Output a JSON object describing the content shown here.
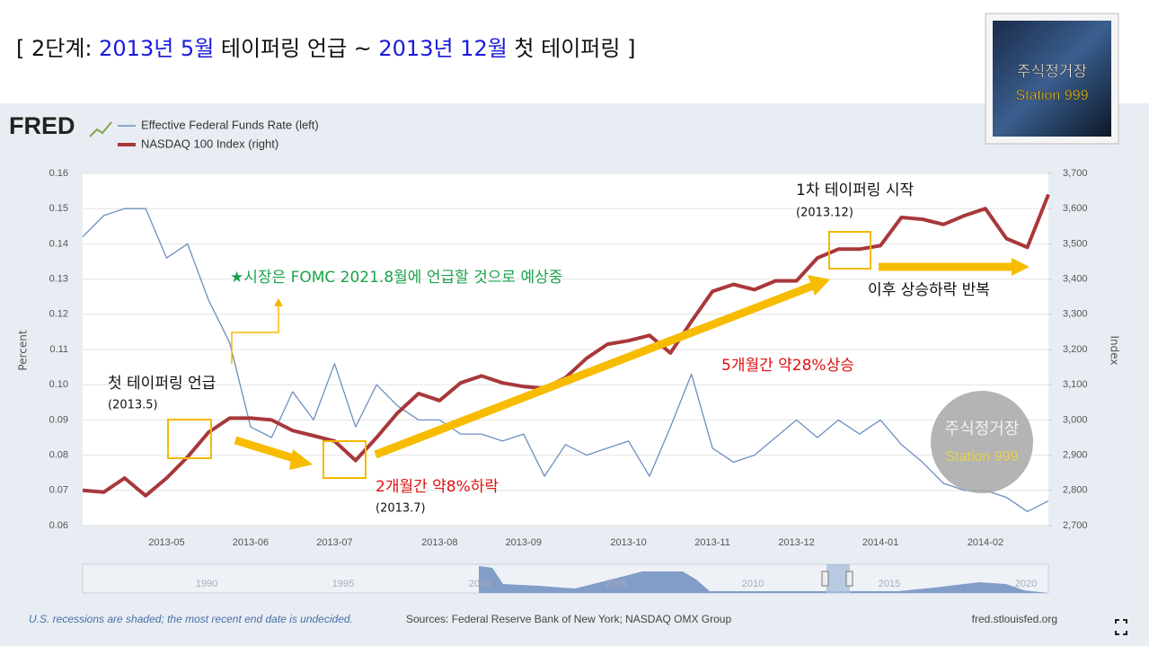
{
  "title_parts": [
    {
      "text": "[ 2단계: ",
      "color": "#111111"
    },
    {
      "text": "2013년 5월",
      "color": "#1a1adc"
    },
    {
      "text": " 테이퍼링 언급 ~ ",
      "color": "#111111"
    },
    {
      "text": "2013년 12월",
      "color": "#1a1adc"
    },
    {
      "text": " 첫 테이퍼링 ]",
      "color": "#111111"
    }
  ],
  "badge": {
    "line1": "주식정거장",
    "line2": "Station 999"
  },
  "watermark": {
    "line1": "주식정거장",
    "line2": "Station 999"
  },
  "logo": "FRED",
  "chart_data": {
    "type": "line",
    "ylabel": "Percent",
    "y2label": "Index",
    "categories": [
      null,
      null,
      null,
      null,
      "2013-05",
      null,
      null,
      null,
      "2013-06",
      null,
      null,
      null,
      "2013-07",
      null,
      null,
      null,
      null,
      "2013-08",
      null,
      null,
      null,
      "2013-09",
      null,
      null,
      null,
      null,
      "2013-10",
      null,
      null,
      null,
      "2013-11",
      null,
      null,
      null,
      "2013-12",
      null,
      null,
      null,
      "2014-01",
      null,
      null,
      null,
      null,
      "2014-02",
      null,
      null,
      null
    ],
    "series": [
      {
        "name": "Effective Federal Funds Rate (left)",
        "color": "#6d8fbf",
        "axis": "y",
        "values": [
          0.142,
          0.148,
          0.15,
          0.15,
          0.136,
          0.14,
          0.124,
          0.112,
          0.088,
          0.085,
          0.098,
          0.09,
          0.106,
          0.088,
          0.1,
          0.094,
          0.09,
          0.09,
          0.086,
          0.086,
          0.084,
          0.086,
          0.074,
          0.083,
          0.08,
          0.082,
          0.084,
          0.074,
          0.088,
          0.103,
          0.082,
          0.078,
          0.08,
          0.085,
          0.09,
          0.085,
          0.09,
          0.086,
          0.09,
          0.083,
          0.078,
          0.072,
          0.07,
          0.07,
          0.068,
          0.064,
          0.067
        ]
      },
      {
        "name": "NASDAQ 100 Index (right)",
        "color": "#a8383a",
        "axis": "y2",
        "values": [
          2800,
          2795,
          2835,
          2785,
          2835,
          2895,
          2965,
          3005,
          3005,
          3000,
          2970,
          2955,
          2940,
          2885,
          2950,
          3020,
          3075,
          3055,
          3105,
          3125,
          3105,
          3095,
          3090,
          3120,
          3175,
          3215,
          3225,
          3240,
          3190,
          3280,
          3365,
          3385,
          3370,
          3395,
          3395,
          3460,
          3485,
          3485,
          3495,
          3575,
          3570,
          3555,
          3580,
          3600,
          3515,
          3490,
          3640
        ]
      }
    ],
    "ylim": [
      0.06,
      0.16
    ],
    "yticks": [
      0.06,
      0.07,
      0.08,
      0.09,
      {
        "value": 0.1,
        "label": "0.10"
      },
      0.11,
      0.12,
      0.13,
      0.14,
      0.15,
      0.16
    ],
    "y2lim": [
      2700,
      3700
    ],
    "y2ticks": [
      {
        "value": 2700,
        "label": "2,700"
      },
      {
        "value": 2800,
        "label": "2,800"
      },
      {
        "value": 2900,
        "label": "2,900"
      },
      {
        "value": 3000,
        "label": "3,000"
      },
      {
        "value": 3100,
        "label": "3,100"
      },
      {
        "value": 3200,
        "label": "3,200"
      },
      {
        "value": 3300,
        "label": "3,300"
      },
      {
        "value": 3400,
        "label": "3,400"
      },
      {
        "value": 3500,
        "label": "3,500"
      },
      {
        "value": 3600,
        "label": "3,600"
      },
      {
        "value": 3700,
        "label": "3,700"
      }
    ],
    "grid": true,
    "annotations": [
      "★시장은 FOMC 2021.8월에 언급할 것으로 예상중",
      "첫 테이퍼링 언급",
      "(2013.5)",
      "2개월간 약8%하락",
      "(2013.7)",
      "5개월간 약28%상승",
      "1차 테이퍼링 시작",
      "(2013.12)",
      "이후 상승하락 반복"
    ],
    "navigator_labels": [
      "1990",
      "1995",
      "2000",
      "2005",
      "2010",
      "2015",
      "2020"
    ],
    "footnote": "U.S. recessions are shaded; the most recent end date is undecided.",
    "sources": "Sources: Federal Reserve Bank of New York; NASDAQ OMX Group",
    "site": "fred.stlouisfed.org"
  }
}
